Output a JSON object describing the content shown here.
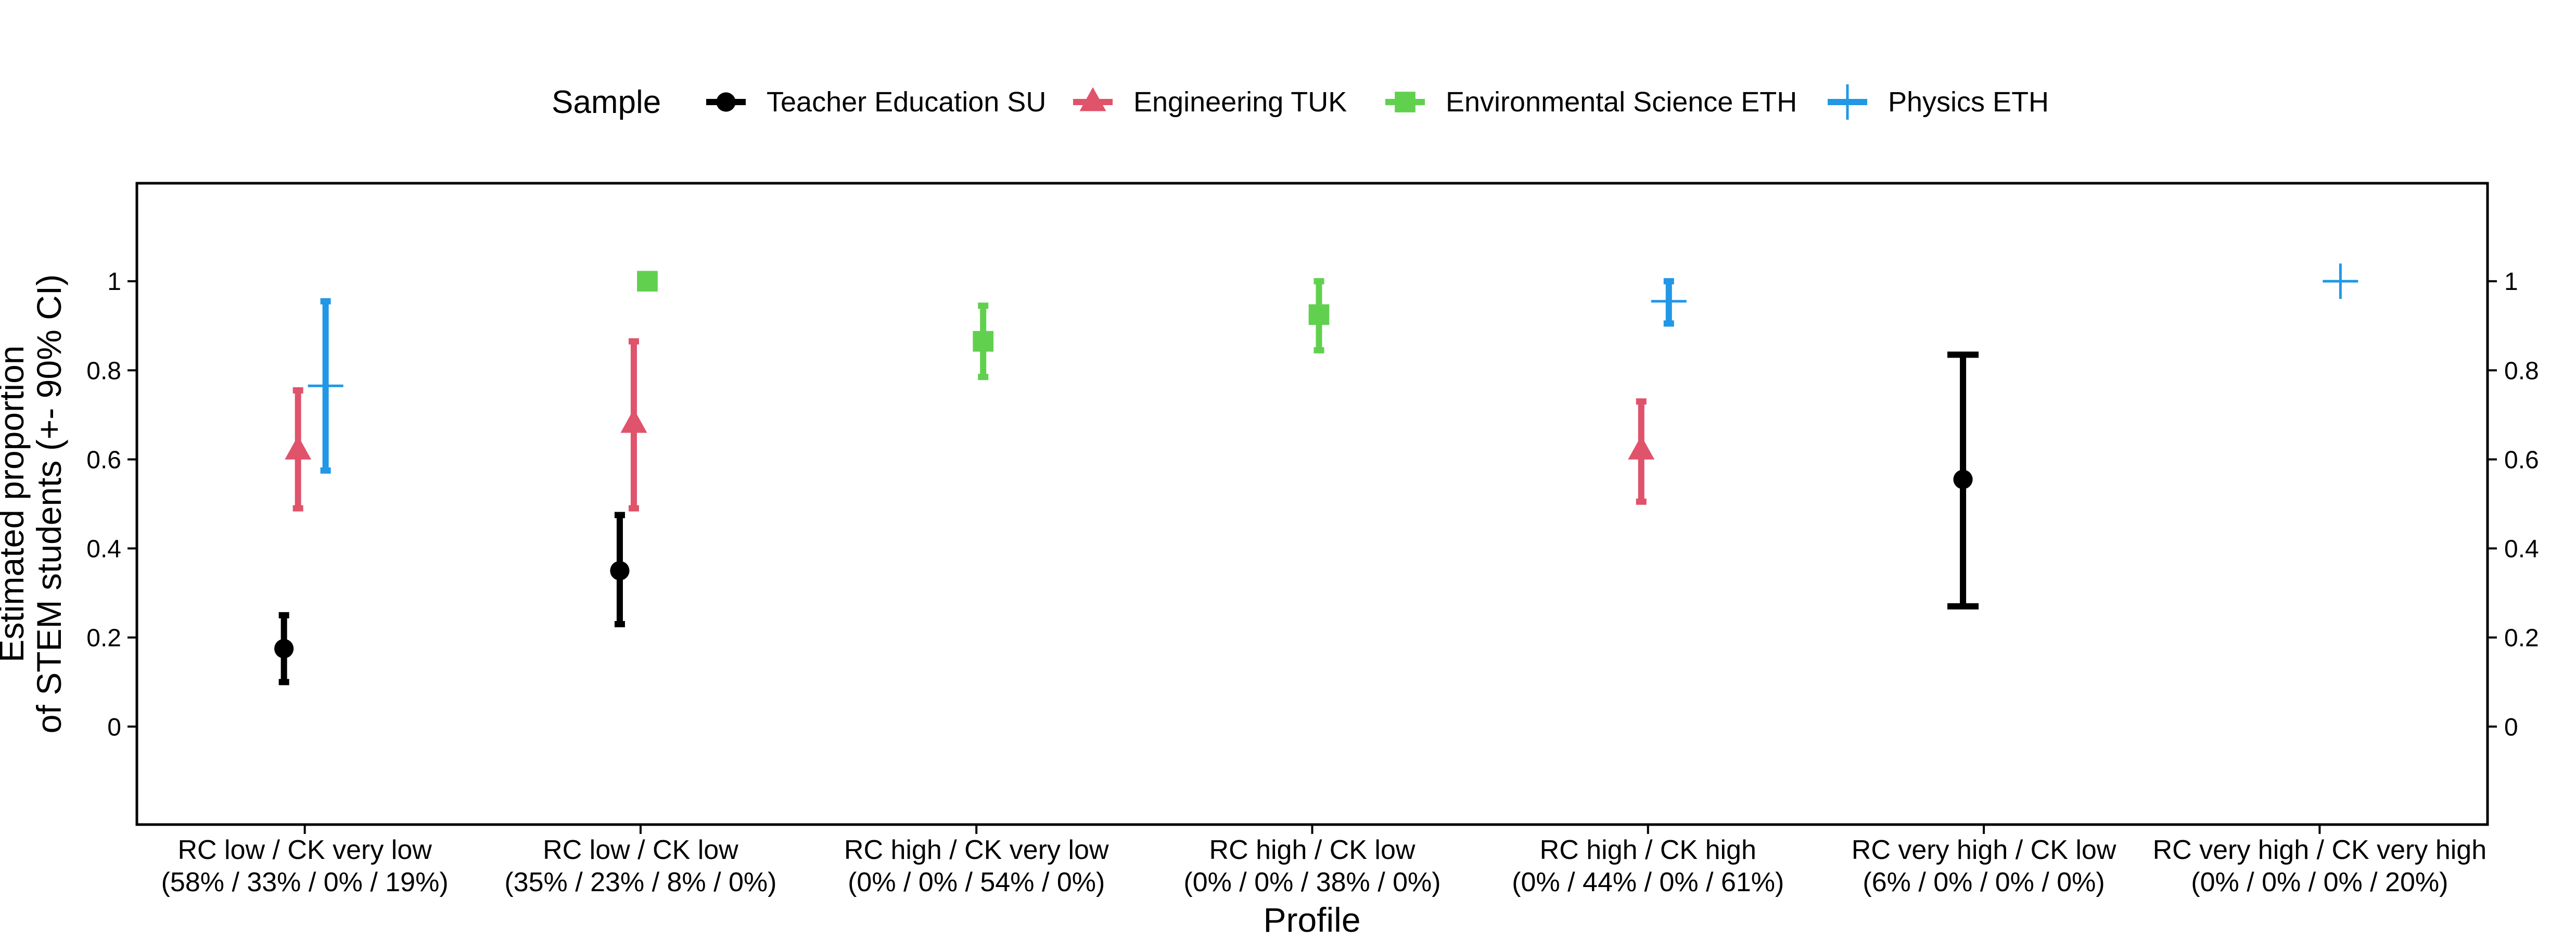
{
  "chart_data": {
    "type": "scatter",
    "subtype": "point-range with 90% confidence interval error bars",
    "legend": {
      "title": "Sample",
      "placement": "top"
    },
    "xlabel": "Profile",
    "ylabel_lines": [
      "Estimated proportion",
      "of STEM students (+- 90% CI)"
    ],
    "ylim": [
      -0.22,
      1.22
    ],
    "yticks": [
      0,
      0.2,
      0.4,
      0.6,
      0.8,
      1
    ],
    "ytick_labels": [
      "0",
      "0.2",
      "0.4",
      "0.6",
      "0.8",
      "1"
    ],
    "secondary_y_axis": true,
    "grid": false,
    "categories": [
      {
        "line1": "RC low / CK very low",
        "line2": "(58% / 33% / 0% / 19%)"
      },
      {
        "line1": "RC low / CK low",
        "line2": "(35% / 23% / 8% / 0%)"
      },
      {
        "line1": "RC high / CK very low",
        "line2": "(0% / 0% / 54% / 0%)"
      },
      {
        "line1": "RC high / CK low",
        "line2": "(0% / 0% / 38% / 0%)"
      },
      {
        "line1": "RC high / CK high",
        "line2": "(0% / 44% / 0% / 61%)"
      },
      {
        "line1": "RC very high / CK low",
        "line2": "(6% / 0% / 0% / 0%)"
      },
      {
        "line1": "RC very high / CK very high",
        "line2": "(0% / 0% / 0% / 20%)"
      }
    ],
    "series": [
      {
        "name": "Teacher Education SU",
        "color": "#000000",
        "shape": "circle",
        "points": [
          {
            "category": 0,
            "estimate": 0.175,
            "lower": 0.1,
            "upper": 0.25
          },
          {
            "category": 1,
            "estimate": 0.35,
            "lower": 0.23,
            "upper": 0.475
          },
          {
            "category": 5,
            "estimate": 0.555,
            "lower": 0.27,
            "upper": 0.835
          }
        ]
      },
      {
        "name": "Engineering TUK",
        "color": "#DF536B",
        "shape": "triangle",
        "points": [
          {
            "category": 0,
            "estimate": 0.62,
            "lower": 0.49,
            "upper": 0.755
          },
          {
            "category": 1,
            "estimate": 0.68,
            "lower": 0.49,
            "upper": 0.865
          },
          {
            "category": 4,
            "estimate": 0.62,
            "lower": 0.505,
            "upper": 0.73
          }
        ]
      },
      {
        "name": "Environmental Science ETH",
        "color": "#61D04F",
        "shape": "square",
        "points": [
          {
            "category": 1,
            "estimate": 1.0,
            "lower": 1.0,
            "upper": 1.0
          },
          {
            "category": 2,
            "estimate": 0.865,
            "lower": 0.785,
            "upper": 0.945
          },
          {
            "category": 3,
            "estimate": 0.925,
            "lower": 0.845,
            "upper": 1.0
          }
        ]
      },
      {
        "name": "Physics ETH",
        "color": "#2297E6",
        "shape": "plus",
        "points": [
          {
            "category": 0,
            "estimate": 0.765,
            "lower": 0.575,
            "upper": 0.955
          },
          {
            "category": 4,
            "estimate": 0.955,
            "lower": 0.905,
            "upper": 1.0
          },
          {
            "category": 6,
            "estimate": 1.0,
            "lower": 1.0,
            "upper": 1.0
          }
        ]
      }
    ]
  }
}
